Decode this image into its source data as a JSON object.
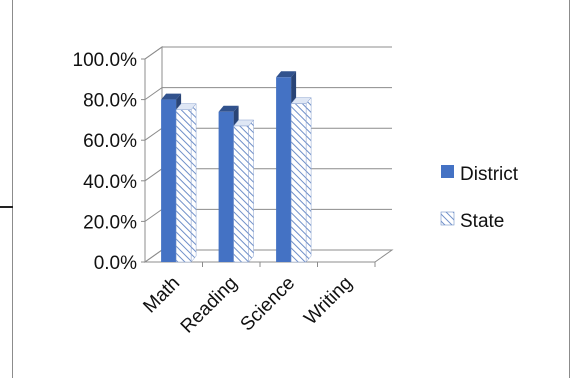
{
  "chart_data": {
    "type": "bar",
    "categories": [
      "Math",
      "Reading",
      "Science",
      "Writing"
    ],
    "series": [
      {
        "name": "District",
        "values": [
          80.0,
          74.0,
          91.0,
          null
        ],
        "color": "#4472c4",
        "pattern": "solid"
      },
      {
        "name": "State",
        "values": [
          75.0,
          67.0,
          78.0,
          null
        ],
        "color": "#4472c4",
        "pattern": "diagonal-hatch"
      }
    ],
    "ylim": [
      0,
      100
    ],
    "y_ticks": [
      "0.0%",
      "20.0%",
      "40.0%",
      "60.0%",
      "80.0%",
      "100.0%"
    ],
    "grid": true,
    "legend_position": "right",
    "title": "",
    "xlabel": "",
    "ylabel": ""
  }
}
